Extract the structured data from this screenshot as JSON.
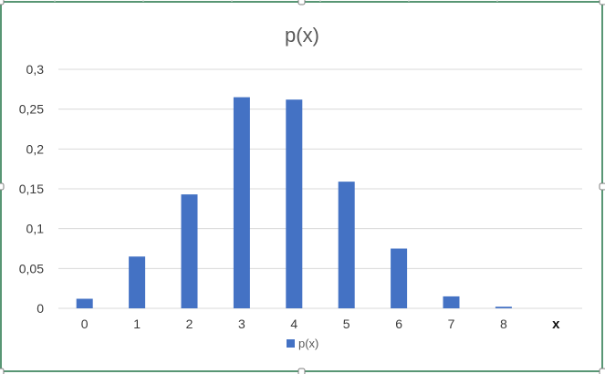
{
  "chart_data": {
    "type": "bar",
    "title": "p(x)",
    "categories": [
      "0",
      "1",
      "2",
      "3",
      "4",
      "5",
      "6",
      "7",
      "8",
      "x"
    ],
    "series": [
      {
        "name": "p(x)",
        "values": [
          0.012,
          0.065,
          0.143,
          0.265,
          0.262,
          0.159,
          0.075,
          0.015,
          0.002,
          0
        ],
        "color": "#4472C4"
      }
    ],
    "yticks": [
      "0",
      "0,05",
      "0,1",
      "0,15",
      "0,2",
      "0,25",
      "0,3"
    ],
    "ylim": [
      0,
      0.3
    ],
    "grid": true,
    "legend": "bottom",
    "xlabel": "",
    "ylabel": ""
  },
  "colors": {
    "frame_border": "#217346",
    "gridline": "#d9d9d9",
    "bar": "#4472C4"
  }
}
